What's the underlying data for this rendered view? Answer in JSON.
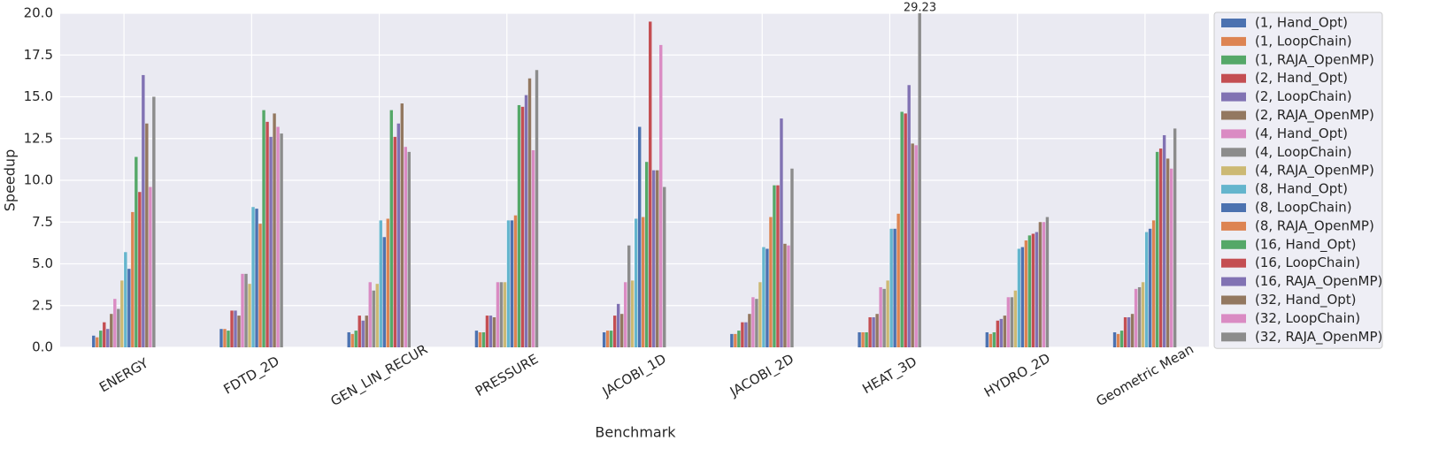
{
  "chart_data": {
    "type": "bar",
    "xlabel": "Benchmark",
    "ylabel": "Speedup",
    "categories": [
      "ENERGY",
      "FDTD_2D",
      "GEN_LIN_RECUR",
      "PRESSURE",
      "JACOBI_1D",
      "JACOBI_2D",
      "HEAT_3D",
      "HYDRO_2D",
      "Geometric Mean"
    ],
    "ylim": [
      0,
      20
    ],
    "yticks": [
      {
        "value": 0,
        "label": "0.0"
      },
      2.5,
      {
        "value": 5,
        "label": "5.0"
      },
      7.5,
      {
        "value": 10,
        "label": "10.0"
      },
      12.5,
      {
        "value": 15,
        "label": "15.0"
      },
      17.5,
      {
        "value": 20,
        "label": "20.0"
      }
    ],
    "grid": true,
    "legend": "right",
    "series": [
      {
        "name": "(1, Hand_Opt)",
        "color": "#4C72B0",
        "values": [
          0.7,
          1.1,
          0.9,
          1.0,
          0.9,
          0.8,
          0.9,
          0.9,
          0.9
        ]
      },
      {
        "name": "(1, LoopChain)",
        "color": "#DD8452",
        "values": [
          0.6,
          1.1,
          0.8,
          0.9,
          1.0,
          0.8,
          0.9,
          0.8,
          0.8
        ]
      },
      {
        "name": "(1, RAJA_OpenMP)",
        "color": "#55A868",
        "values": [
          1.0,
          1.0,
          1.0,
          0.9,
          1.0,
          1.0,
          0.9,
          0.9,
          1.0
        ]
      },
      {
        "name": "(2, Hand_Opt)",
        "color": "#C44E52",
        "values": [
          1.5,
          2.2,
          1.9,
          1.9,
          1.9,
          1.5,
          1.8,
          1.6,
          1.8
        ]
      },
      {
        "name": "(2, LoopChain)",
        "color": "#8172B3",
        "values": [
          1.1,
          2.2,
          1.6,
          1.9,
          2.6,
          1.5,
          1.8,
          1.7,
          1.8
        ]
      },
      {
        "name": "(2, RAJA_OpenMP)",
        "color": "#937860",
        "values": [
          2.0,
          1.9,
          1.9,
          1.8,
          2.0,
          2.0,
          2.0,
          1.9,
          2.0
        ]
      },
      {
        "name": "(4, Hand_Opt)",
        "color": "#DA8BC3",
        "values": [
          2.9,
          4.4,
          3.9,
          3.9,
          3.9,
          3.0,
          3.6,
          3.0,
          3.5
        ]
      },
      {
        "name": "(4, LoopChain)",
        "color": "#8C8C8C",
        "values": [
          2.3,
          4.4,
          3.4,
          3.9,
          6.1,
          2.9,
          3.5,
          3.0,
          3.6
        ]
      },
      {
        "name": "(4, RAJA_OpenMP)",
        "color": "#CCB974",
        "values": [
          4.0,
          3.8,
          3.8,
          3.9,
          4.0,
          3.9,
          4.0,
          3.4,
          3.9
        ]
      },
      {
        "name": "(8, Hand_Opt)",
        "color": "#64B5CD",
        "values": [
          5.7,
          8.4,
          7.6,
          7.6,
          7.7,
          6.0,
          7.1,
          5.9,
          6.9
        ]
      },
      {
        "name": "(8, LoopChain)",
        "color": "#4C72B0",
        "values": [
          4.7,
          8.3,
          6.6,
          7.6,
          13.2,
          5.9,
          7.1,
          6.0,
          7.1
        ]
      },
      {
        "name": "(8, RAJA_OpenMP)",
        "color": "#DD8452",
        "values": [
          8.1,
          7.4,
          7.7,
          7.9,
          7.8,
          7.8,
          8.0,
          6.4,
          7.6
        ]
      },
      {
        "name": "(16, Hand_Opt)",
        "color": "#55A868",
        "values": [
          11.4,
          14.2,
          14.2,
          14.5,
          11.1,
          9.7,
          14.1,
          6.7,
          11.7
        ]
      },
      {
        "name": "(16, LoopChain)",
        "color": "#C44E52",
        "values": [
          9.3,
          13.5,
          12.6,
          14.4,
          19.5,
          9.7,
          14.0,
          6.8,
          11.9
        ]
      },
      {
        "name": "(16, RAJA_OpenMP)",
        "color": "#8172B3",
        "values": [
          16.3,
          12.6,
          13.4,
          15.1,
          10.6,
          13.7,
          15.7,
          6.9,
          12.7
        ]
      },
      {
        "name": "(32, Hand_Opt)",
        "color": "#937860",
        "values": [
          13.4,
          14.0,
          14.6,
          16.1,
          10.6,
          6.2,
          12.2,
          7.5,
          11.3
        ]
      },
      {
        "name": "(32, LoopChain)",
        "color": "#DA8BC3",
        "values": [
          9.6,
          13.2,
          12.0,
          11.8,
          18.1,
          6.1,
          12.1,
          7.5,
          10.7
        ]
      },
      {
        "name": "(32, RAJA_OpenMP)",
        "color": "#8C8C8C",
        "values": [
          15.0,
          12.8,
          11.7,
          16.6,
          9.6,
          10.7,
          29.23,
          7.8,
          13.1
        ],
        "value_labels": [
          null,
          null,
          null,
          null,
          null,
          null,
          "29.23",
          null,
          null
        ]
      }
    ]
  }
}
